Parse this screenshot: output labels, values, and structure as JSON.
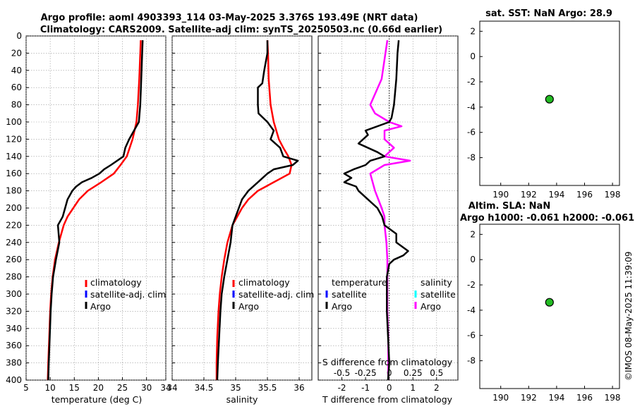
{
  "title_line1": "Argo profile: aoml 4903393_114 03-May-2025 3.376S 193.49E (NRT data)",
  "title_line2": "Climatology: CARS2009. Satellite-adj clim: synTS_20250503.nc (0.66d earlier)",
  "watermark": "©IMOS 08-May-2025 11:39:09",
  "colors": {
    "climatology": "#ff0000",
    "satellite": "#0000ff",
    "argo": "#000000",
    "argo_salinity": "#ff00ff",
    "satellite_salinity": "#00ffff",
    "marker": "#22bb22"
  },
  "legend_profile": [
    "climatology",
    "satellite-adj. clim",
    "Argo"
  ],
  "legend_diff": {
    "temp_header": "temperature",
    "sal_header": "salinity",
    "temp_items": [
      "satellite",
      "Argo"
    ],
    "sal_items": [
      "satellite",
      "Argo"
    ]
  },
  "chart_data": [
    {
      "type": "line",
      "name": "temperature",
      "xlabel": "temperature (deg C)",
      "ylabel": "",
      "xlim": [
        5,
        34
      ],
      "ylim": [
        400,
        0
      ],
      "xticks": [
        "5",
        "10",
        "15",
        "20",
        "25",
        "30",
        "34"
      ],
      "yticks": [
        "0",
        "20",
        "40",
        "60",
        "80",
        "100",
        "120",
        "140",
        "160",
        "180",
        "200",
        "220",
        "240",
        "260",
        "280",
        "300",
        "320",
        "340",
        "360",
        "380",
        "400"
      ],
      "series": [
        {
          "name": "climatology",
          "depth": [
            5,
            20,
            50,
            80,
            100,
            120,
            140,
            150,
            160,
            170,
            180,
            190,
            200,
            210,
            220,
            240,
            260,
            280,
            300,
            320,
            350,
            380,
            400
          ],
          "values": [
            28.8,
            28.7,
            28.5,
            28.2,
            27.9,
            27.1,
            25.9,
            24.6,
            23.2,
            20.6,
            17.8,
            16.0,
            14.8,
            13.6,
            12.8,
            11.8,
            11.0,
            10.5,
            10.2,
            10.0,
            9.8,
            9.6,
            9.5
          ]
        },
        {
          "name": "Argo",
          "depth": [
            5,
            20,
            50,
            80,
            100,
            110,
            120,
            130,
            140,
            150,
            155,
            160,
            165,
            170,
            175,
            180,
            190,
            200,
            210,
            220,
            240,
            260,
            280,
            300,
            320,
            350,
            380,
            400
          ],
          "values": [
            29.2,
            29.1,
            28.9,
            28.7,
            28.4,
            27.4,
            26.4,
            25.6,
            25.2,
            22.6,
            21.2,
            20.2,
            18.6,
            16.6,
            15.4,
            14.6,
            13.6,
            13.1,
            12.6,
            11.6,
            11.9,
            11.2,
            10.6,
            10.3,
            10.1,
            9.9,
            9.7,
            9.6
          ]
        }
      ]
    },
    {
      "type": "line",
      "name": "salinity",
      "xlabel": "salinity",
      "xlim": [
        34,
        36.2
      ],
      "ylim": [
        400,
        0
      ],
      "xticks": [
        "34",
        "34.5",
        "35",
        "35.5",
        "36"
      ],
      "series": [
        {
          "name": "climatology",
          "depth": [
            5,
            20,
            50,
            80,
            100,
            120,
            130,
            140,
            150,
            160,
            170,
            180,
            190,
            200,
            220,
            240,
            260,
            280,
            300,
            320,
            350,
            380,
            400
          ],
          "values": [
            35.5,
            35.51,
            35.52,
            35.55,
            35.6,
            35.68,
            35.75,
            35.83,
            35.88,
            35.85,
            35.6,
            35.35,
            35.2,
            35.1,
            34.95,
            34.87,
            34.82,
            34.78,
            34.75,
            34.73,
            34.71,
            34.7,
            34.7
          ]
        },
        {
          "name": "Argo",
          "depth": [
            5,
            20,
            40,
            55,
            60,
            70,
            80,
            90,
            100,
            110,
            120,
            130,
            140,
            145,
            150,
            155,
            160,
            170,
            180,
            190,
            200,
            220,
            240,
            260,
            280,
            300,
            320,
            350,
            380,
            400
          ],
          "values": [
            35.5,
            35.5,
            35.45,
            35.42,
            35.35,
            35.35,
            35.35,
            35.36,
            35.5,
            35.6,
            35.55,
            35.7,
            35.75,
            35.98,
            35.9,
            35.6,
            35.5,
            35.35,
            35.2,
            35.1,
            35.05,
            34.95,
            34.92,
            34.87,
            34.82,
            34.78,
            34.76,
            34.74,
            34.72,
            34.71
          ]
        }
      ]
    },
    {
      "type": "line",
      "name": "difference",
      "xlabel": "T difference from climatology",
      "xlabel2": "S difference from climatology",
      "xlim": [
        -3,
        2.9
      ],
      "ylim": [
        400,
        0
      ],
      "xticks": [
        "-2",
        "-1",
        "0",
        "1",
        "2"
      ],
      "xticks2": [
        "-0.5",
        "-0.25",
        "0",
        "0.25",
        "0.5"
      ],
      "series": [
        {
          "name": "T Argo",
          "depth": [
            5,
            20,
            50,
            80,
            95,
            100,
            110,
            115,
            125,
            135,
            140,
            145,
            150,
            155,
            160,
            165,
            170,
            175,
            180,
            190,
            200,
            210,
            220,
            230,
            240,
            250,
            255,
            260,
            265,
            280,
            300,
            320,
            350,
            380,
            400
          ],
          "values": [
            0.4,
            0.35,
            0.3,
            0.2,
            0.1,
            0.0,
            -1.0,
            -0.9,
            -1.3,
            -0.5,
            -0.2,
            -0.8,
            -1.0,
            -1.5,
            -1.9,
            -1.6,
            -1.9,
            -1.4,
            -1.3,
            -0.9,
            -0.5,
            -0.3,
            -0.2,
            0.3,
            0.3,
            0.8,
            0.6,
            0.2,
            0.0,
            -0.1,
            -0.1,
            -0.1,
            -0.05,
            0.0,
            -0.05
          ]
        },
        {
          "name": "S Argo",
          "depth": [
            5,
            20,
            50,
            80,
            90,
            100,
            105,
            110,
            120,
            130,
            140,
            145,
            150,
            160,
            180,
            200,
            210,
            220,
            240,
            260,
            280,
            300,
            320,
            350,
            380,
            400
          ],
          "values": [
            -0.02,
            -0.04,
            -0.08,
            -0.2,
            -0.15,
            0.0,
            0.13,
            -0.05,
            -0.05,
            0.05,
            -0.05,
            0.22,
            -0.05,
            -0.2,
            -0.15,
            -0.08,
            -0.05,
            -0.05,
            -0.03,
            -0.02,
            -0.02,
            -0.02,
            -0.02,
            -0.01,
            -0.01,
            -0.01
          ]
        }
      ]
    },
    {
      "type": "scatter",
      "name": "sst-map",
      "title": "sat. SST: NaN Argo: 28.9",
      "xticks": [
        "190",
        "192",
        "194",
        "196",
        "198"
      ],
      "yticks": [
        "2",
        "0",
        "-2",
        "-4",
        "-6",
        "-8"
      ],
      "xlim": [
        188.5,
        198.5
      ],
      "ylim": [
        -10.2,
        2.8
      ],
      "points": [
        {
          "x": 193.49,
          "y": -3.376
        }
      ]
    },
    {
      "type": "scatter",
      "name": "sla-map",
      "title": "Altim. SLA: NaN",
      "title2": "Argo h1000: -0.061 h2000: -0.061",
      "xticks": [
        "190",
        "192",
        "194",
        "196",
        "198"
      ],
      "yticks": [
        "2",
        "0",
        "-2",
        "-4",
        "-6",
        "-8"
      ],
      "xlim": [
        188.5,
        198.5
      ],
      "ylim": [
        -10.2,
        2.8
      ],
      "points": [
        {
          "x": 193.49,
          "y": -3.376
        }
      ]
    }
  ]
}
